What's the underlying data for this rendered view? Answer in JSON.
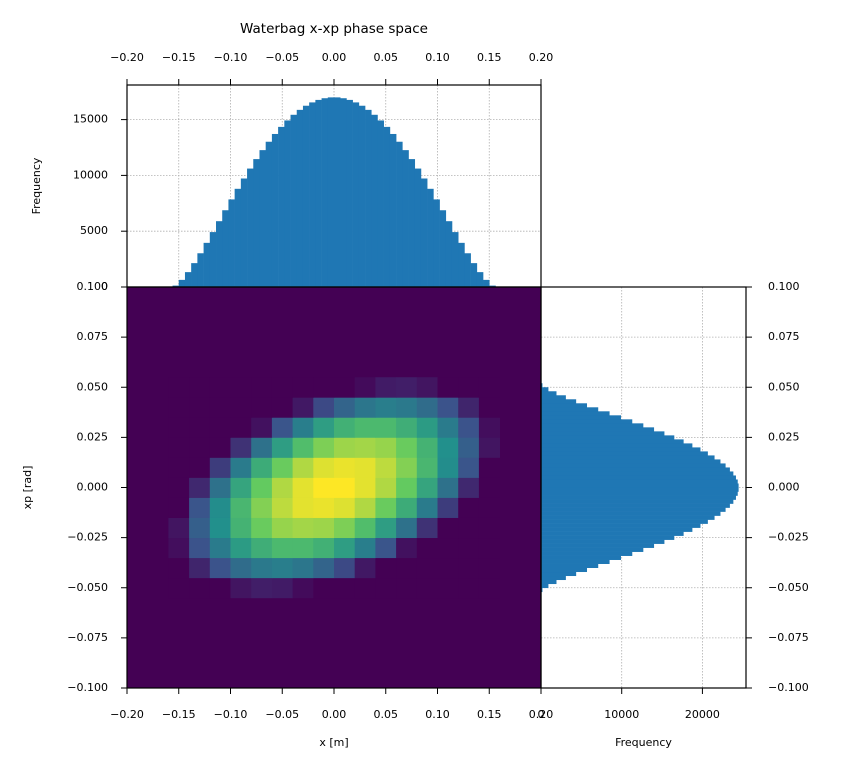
{
  "chart_data": [
    {
      "type": "histogram",
      "orientation": "vertical",
      "title": "Waterbag x-xp phase space",
      "ylabel": "Frequency",
      "color": "#1f77b4",
      "grid": true,
      "xaxis_position": "top",
      "bins": [
        -0.156,
        -0.15,
        -0.144,
        -0.138,
        -0.132,
        -0.126,
        -0.12,
        -0.114,
        -0.108,
        -0.102,
        -0.096,
        -0.09,
        -0.084,
        -0.078,
        -0.072,
        -0.066,
        -0.06,
        -0.054,
        -0.048,
        -0.042,
        -0.036,
        -0.03,
        -0.024,
        -0.018,
        -0.012,
        -0.006,
        0,
        0.006,
        0.012,
        0.018,
        0.024,
        0.03,
        0.036,
        0.042,
        0.048,
        0.054,
        0.06,
        0.066,
        0.072,
        0.078,
        0.084,
        0.09,
        0.096,
        0.102,
        0.108,
        0.114,
        0.12,
        0.126,
        0.132,
        0.138,
        0.144,
        0.15,
        0.156
      ],
      "values": [
        126,
        638,
        1332,
        2139,
        3023,
        3956,
        4920,
        5897,
        6878,
        7848,
        8798,
        9722,
        10612,
        11461,
        12264,
        13016,
        13712,
        14348,
        14923,
        15431,
        15872,
        16242,
        16540,
        16764,
        16915,
        16991,
        16991,
        16915,
        16764,
        16540,
        16242,
        15872,
        15431,
        14923,
        14348,
        13712,
        13016,
        12264,
        11461,
        10612,
        9722,
        8798,
        7848,
        6878,
        5897,
        4920,
        3956,
        3023,
        2139,
        1332,
        638,
        126
      ],
      "xlim": [
        -0.2,
        0.2
      ],
      "xticks": [
        {
          "value": -0.2,
          "label": "−0.20"
        },
        {
          "value": -0.15,
          "label": "−0.15"
        },
        {
          "value": -0.1,
          "label": "−0.10"
        },
        {
          "value": -0.05,
          "label": "−0.05"
        },
        {
          "value": 0,
          "label": "0.00"
        },
        {
          "value": 0.05,
          "label": "0.05"
        },
        {
          "value": 0.1,
          "label": "0.10"
        },
        {
          "value": 0.15,
          "label": "0.15"
        },
        {
          "value": 0.2,
          "label": "0.20"
        }
      ],
      "ylim": [
        0,
        18100
      ],
      "yticks": [
        0,
        5000,
        10000,
        15000
      ]
    },
    {
      "type": "heatmap",
      "xlabel": "x [m]",
      "ylabel": "xp [rad]",
      "colormap": "viridis",
      "grid": false,
      "xbins": [
        -0.16,
        -0.14,
        -0.12,
        -0.1,
        -0.08,
        -0.06,
        -0.04,
        -0.02,
        0,
        0.02,
        0.04,
        0.06,
        0.08,
        0.1,
        0.12,
        0.14,
        0.16
      ],
      "ybins": [
        -0.055,
        -0.045,
        -0.035,
        -0.025,
        -0.015,
        -0.005,
        0.005,
        0.015,
        0.025,
        0.035,
        0.045,
        0.055
      ],
      "values": [
        [
          0,
          0,
          0,
          6,
          9,
          8,
          3,
          0,
          0,
          0,
          0,
          0,
          0,
          0,
          0,
          0
        ],
        [
          0,
          11,
          25,
          35,
          40,
          42,
          39,
          32,
          22,
          7,
          0,
          0,
          0,
          0,
          0,
          0
        ],
        [
          4,
          25,
          41,
          54,
          62,
          67,
          67,
          63,
          55,
          42,
          26,
          5,
          0,
          0,
          0,
          0
        ],
        [
          6,
          30,
          49,
          64,
          76,
          83,
          85,
          84,
          79,
          69,
          55,
          37,
          15,
          0,
          0,
          0
        ],
        [
          0,
          26,
          48,
          66,
          80,
          89,
          95,
          96,
          94,
          87,
          76,
          61,
          41,
          18,
          0,
          0
        ],
        [
          0,
          12,
          37,
          58,
          75,
          87,
          95,
          99,
          99,
          95,
          87,
          75,
          58,
          37,
          12,
          0
        ],
        [
          0,
          0,
          18,
          41,
          61,
          76,
          87,
          94,
          96,
          95,
          89,
          80,
          66,
          48,
          26,
          0
        ],
        [
          0,
          0,
          0,
          15,
          37,
          55,
          69,
          79,
          84,
          85,
          83,
          76,
          64,
          49,
          30,
          6
        ],
        [
          0,
          0,
          0,
          0,
          5,
          26,
          42,
          55,
          63,
          67,
          67,
          62,
          54,
          41,
          25,
          4
        ],
        [
          0,
          0,
          0,
          0,
          0,
          0,
          7,
          22,
          32,
          39,
          42,
          40,
          35,
          25,
          11,
          0
        ],
        [
          0,
          0,
          0,
          0,
          0,
          0,
          0,
          0,
          0,
          3,
          8,
          9,
          6,
          0,
          0,
          0
        ]
      ],
      "xlim": [
        -0.2,
        0.2
      ],
      "xticks": [
        {
          "value": -0.2,
          "label": "−0.20"
        },
        {
          "value": -0.15,
          "label": "−0.15"
        },
        {
          "value": -0.1,
          "label": "−0.10"
        },
        {
          "value": -0.05,
          "label": "−0.05"
        },
        {
          "value": 0,
          "label": "0.00"
        },
        {
          "value": 0.05,
          "label": "0.05"
        },
        {
          "value": 0.1,
          "label": "0.10"
        },
        {
          "value": 0.15,
          "label": "0.15"
        },
        {
          "value": 0.2,
          "label": "0.20"
        }
      ],
      "ylim": [
        -0.1,
        0.1
      ],
      "yticks": [
        {
          "value": -0.1,
          "label": "−0.100"
        },
        {
          "value": -0.075,
          "label": "−0.075"
        },
        {
          "value": -0.05,
          "label": "−0.050"
        },
        {
          "value": -0.025,
          "label": "−0.025"
        },
        {
          "value": 0,
          "label": "0.000"
        },
        {
          "value": 0.025,
          "label": "0.025"
        },
        {
          "value": 0.05,
          "label": "0.050"
        },
        {
          "value": 0.075,
          "label": "0.075"
        },
        {
          "value": 0.1,
          "label": "0.100"
        }
      ]
    },
    {
      "type": "histogram",
      "orientation": "horizontal",
      "xlabel": "Frequency",
      "color": "#1f77b4",
      "grid": true,
      "yaxis_position": "right",
      "bins": [
        -0.052,
        -0.05,
        -0.048,
        -0.046,
        -0.044,
        -0.042,
        -0.04,
        -0.038,
        -0.036,
        -0.034,
        -0.032,
        -0.03,
        -0.028,
        -0.026,
        -0.024,
        -0.022,
        -0.02,
        -0.018,
        -0.016,
        -0.014,
        -0.012,
        -0.01,
        -0.008,
        -0.006,
        -0.004,
        -0.002,
        0,
        0.002,
        0.004,
        0.006,
        0.008,
        0.01,
        0.012,
        0.014,
        0.016,
        0.018,
        0.02,
        0.022,
        0.024,
        0.026,
        0.028,
        0.03,
        0.032,
        0.034,
        0.036,
        0.038,
        0.04,
        0.042,
        0.044,
        0.046,
        0.048,
        0.05,
        0.052
      ],
      "values": [
        182,
        919,
        1919,
        3082,
        4356,
        5701,
        7090,
        8498,
        9911,
        11309,
        12678,
        14009,
        15292,
        16515,
        17672,
        18756,
        19759,
        20675,
        21504,
        22236,
        22872,
        23405,
        23834,
        24157,
        24375,
        24484,
        24484,
        24375,
        24157,
        23834,
        23405,
        22872,
        22236,
        21504,
        20675,
        19759,
        18756,
        17672,
        16515,
        15292,
        14009,
        12678,
        11309,
        9911,
        8498,
        7090,
        5701,
        4356,
        3082,
        1919,
        919,
        182
      ],
      "xlim": [
        0,
        25400
      ],
      "xticks": [
        0,
        10000,
        20000
      ],
      "ylim": [
        -0.1,
        0.1
      ],
      "yticks": [
        {
          "value": -0.1,
          "label": "−0.100"
        },
        {
          "value": -0.075,
          "label": "−0.075"
        },
        {
          "value": -0.05,
          "label": "−0.050"
        },
        {
          "value": -0.025,
          "label": "−0.025"
        },
        {
          "value": 0,
          "label": "0.000"
        },
        {
          "value": 0.025,
          "label": "0.025"
        },
        {
          "value": 0.05,
          "label": "0.050"
        },
        {
          "value": 0.075,
          "label": "0.075"
        },
        {
          "value": 0.1,
          "label": "0.100"
        }
      ]
    }
  ]
}
